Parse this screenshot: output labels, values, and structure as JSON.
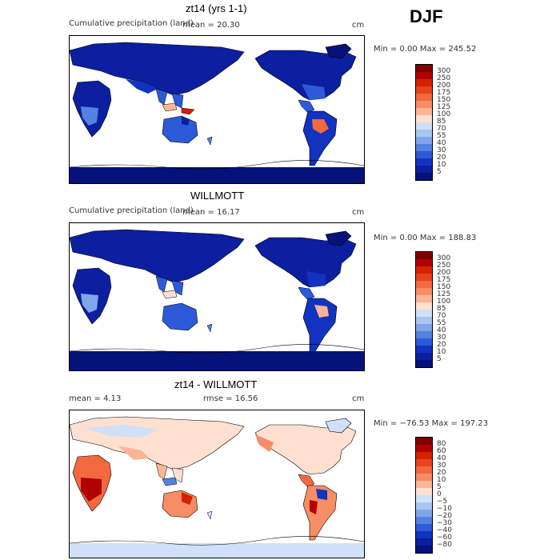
{
  "season": "DJF",
  "panels": [
    {
      "title": "zt14 (yrs 1-1)",
      "subtitle": "Cumulative precipitation (land)",
      "stat": "mean =   20.30",
      "units": "cm",
      "minmax": "Min =    0.00 Max = 245.52",
      "levels": [
        "300",
        "250",
        "200",
        "175",
        "150",
        "125",
        "100",
        "85",
        "70",
        "55",
        "40",
        "30",
        "20",
        "10",
        "5"
      ],
      "colors": [
        "#7f0000",
        "#b00000",
        "#d62000",
        "#e8431a",
        "#f2683f",
        "#f78d64",
        "#fbb596",
        "#fde0cf",
        "#cfe0f8",
        "#a8c6f0",
        "#7ea6e8",
        "#5482df",
        "#2d5ad8",
        "#1232c0",
        "#0b1fa0",
        "#05127a"
      ]
    },
    {
      "title": "WILLMOTT",
      "subtitle": "Cumulative precipitation (land)",
      "stat": "mean =   16.17",
      "units": "cm",
      "minmax": "Min =    0.00 Max = 188.83",
      "levels": [
        "300",
        "250",
        "200",
        "175",
        "150",
        "125",
        "100",
        "85",
        "70",
        "55",
        "40",
        "30",
        "20",
        "10",
        "5"
      ],
      "colors": [
        "#7f0000",
        "#b00000",
        "#d62000",
        "#e8431a",
        "#f2683f",
        "#f78d64",
        "#fbb596",
        "#fde0cf",
        "#cfe0f8",
        "#a8c6f0",
        "#7ea6e8",
        "#5482df",
        "#2d5ad8",
        "#1232c0",
        "#0b1fa0",
        "#05127a"
      ]
    },
    {
      "title": "zt14 - WILLMOTT",
      "stat": "mean =    4.13",
      "rmse": "rmse =   16.56",
      "units": "cm",
      "minmax": "Min = −76.53 Max = 197.23",
      "levels": [
        "80",
        "60",
        "40",
        "30",
        "20",
        "10",
        "5",
        "0",
        "−5",
        "−10",
        "−20",
        "−30",
        "−40",
        "−60",
        "−80"
      ],
      "colors": [
        "#7f0000",
        "#b00000",
        "#d62000",
        "#e8431a",
        "#f2683f",
        "#f78d64",
        "#fbb596",
        "#fde0cf",
        "#cfe0f8",
        "#a8c6f0",
        "#7ea6e8",
        "#5482df",
        "#2d5ad8",
        "#1232c0",
        "#0b1fa0",
        "#05127a"
      ]
    }
  ]
}
